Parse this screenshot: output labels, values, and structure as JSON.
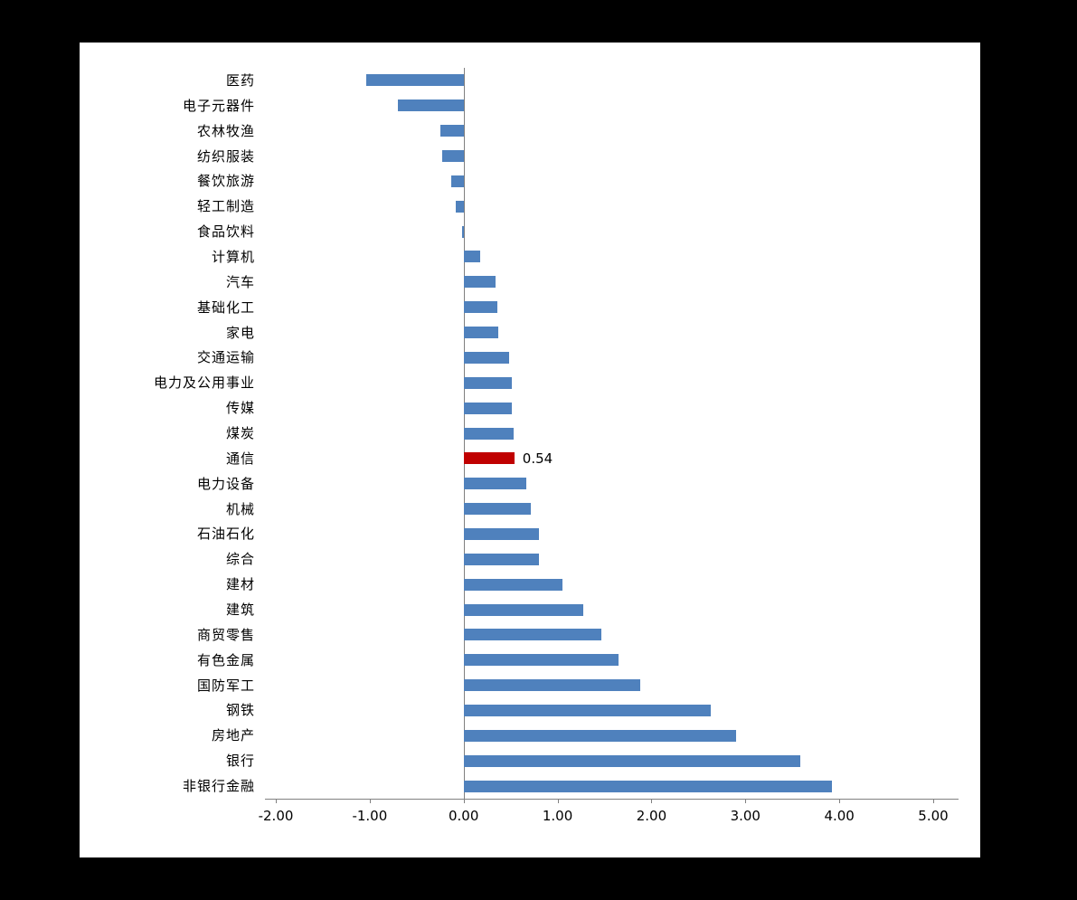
{
  "chart_data": {
    "type": "bar",
    "orientation": "horizontal",
    "title": "",
    "xlabel": "",
    "ylabel": "",
    "xlim": [
      -2,
      5
    ],
    "x_ticks": [
      "-2.00",
      "-1.00",
      "0.00",
      "1.00",
      "2.00",
      "3.00",
      "4.00",
      "5.00"
    ],
    "x_tick_values": [
      -2,
      -1,
      0,
      1,
      2,
      3,
      4,
      5
    ],
    "grid": "off",
    "legend": "none",
    "bar_color": "#4f81bd",
    "axis_color": "#808080",
    "categories": [
      "医药",
      "电子元器件",
      "农林牧渔",
      "纺织服装",
      "餐饮旅游",
      "轻工制造",
      "食品饮料",
      "计算机",
      "汽车",
      "基础化工",
      "家电",
      "交通运输",
      "电力及公用事业",
      "传媒",
      "煤炭",
      "通信",
      "电力设备",
      "机械",
      "石油石化",
      "综合",
      "建材",
      "建筑",
      "商贸零售",
      "有色金属",
      "国防军工",
      "钢铁",
      "房地产",
      "银行",
      "非银行金融"
    ],
    "values": [
      -1.04,
      -0.7,
      -0.25,
      -0.23,
      -0.13,
      -0.08,
      -0.02,
      0.18,
      0.34,
      0.36,
      0.37,
      0.48,
      0.51,
      0.51,
      0.53,
      0.54,
      0.67,
      0.72,
      0.8,
      0.8,
      1.05,
      1.27,
      1.47,
      1.65,
      1.88,
      2.63,
      2.9,
      3.58,
      3.92
    ],
    "highlight": {
      "category": "通信",
      "value": 0.54,
      "value_label": "0.54",
      "color": "#c00000"
    }
  }
}
